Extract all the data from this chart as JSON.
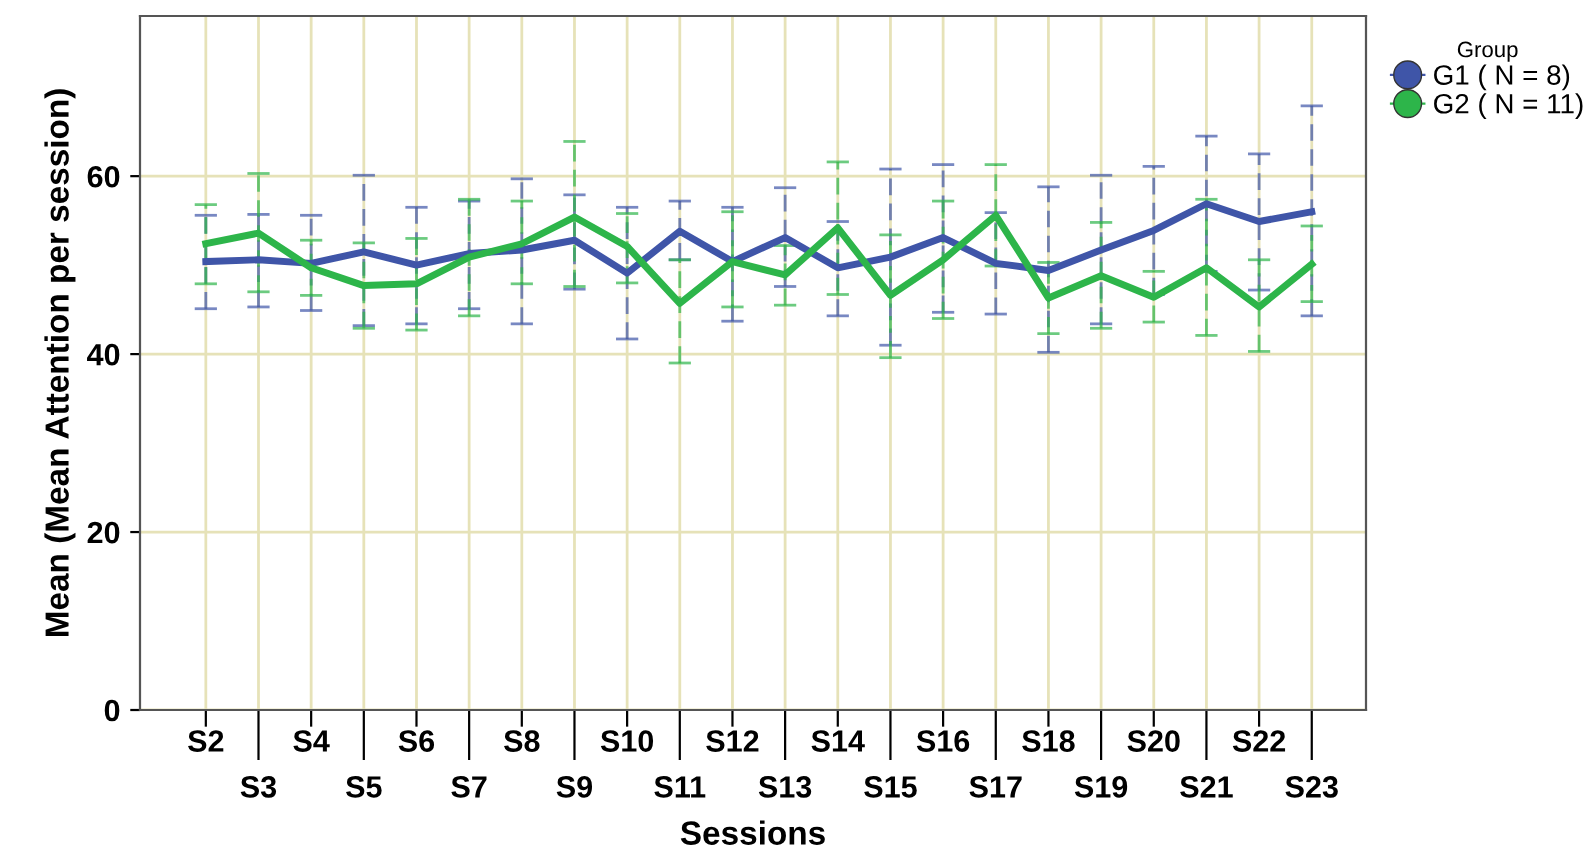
{
  "chart_data": {
    "type": "line",
    "xlabel": "Sessions",
    "ylabel": "Mean (Mean Attention per session)",
    "legend_title": "Group",
    "legend": "right",
    "grid": true,
    "marker": "none",
    "line_style": "solid",
    "categories": [
      "S2",
      "S3",
      "S4",
      "S5",
      "S6",
      "S7",
      "S8",
      "S9",
      "S10",
      "S11",
      "S12",
      "S13",
      "S14",
      "S15",
      "S16",
      "S17",
      "S18",
      "S19",
      "S20",
      "S21",
      "S22",
      "S23"
    ],
    "ylim": [
      0,
      78
    ],
    "yticks": [
      0,
      20,
      40,
      60
    ],
    "series": [
      {
        "name": "G1 ( N = 8)",
        "color": "#3f55a8",
        "values": [
          50.4,
          50.6,
          50.2,
          51.5,
          50.0,
          51.3,
          51.7,
          52.8,
          49.1,
          53.8,
          50.4,
          53.1,
          49.7,
          50.9,
          53.1,
          50.2,
          49.4,
          51.7,
          53.9,
          56.9,
          54.9,
          56.0
        ],
        "errors": [
          [
            45.1,
            55.6
          ],
          [
            45.3,
            55.7
          ],
          [
            44.9,
            55.6
          ],
          [
            43.2,
            60.1
          ],
          [
            43.4,
            56.5
          ],
          [
            45.1,
            57.2
          ],
          [
            43.4,
            59.7
          ],
          [
            47.3,
            57.9
          ],
          [
            41.7,
            56.5
          ],
          [
            50.6,
            57.2
          ],
          [
            43.7,
            56.5
          ],
          [
            47.6,
            58.7
          ],
          [
            44.3,
            54.9
          ],
          [
            41.0,
            60.8
          ],
          [
            44.7,
            61.3
          ],
          [
            44.5,
            55.9
          ],
          [
            40.2,
            58.8
          ],
          [
            43.4,
            60.1
          ],
          [
            46.7,
            61.1
          ],
          [
            49.3,
            64.5
          ],
          [
            47.2,
            62.5
          ],
          [
            44.3,
            67.9
          ]
        ]
      },
      {
        "name": "G2 ( N = 11)",
        "color": "#2db54a",
        "values": [
          52.4,
          53.6,
          49.7,
          47.7,
          47.9,
          50.9,
          52.4,
          55.4,
          52.1,
          45.7,
          50.4,
          48.9,
          54.2,
          46.6,
          50.6,
          55.6,
          46.3,
          48.8,
          46.4,
          49.7,
          45.3,
          50.1
        ],
        "errors": [
          [
            47.9,
            56.8
          ],
          [
            47.0,
            60.3
          ],
          [
            46.6,
            52.8
          ],
          [
            42.9,
            52.5
          ],
          [
            42.7,
            53.0
          ],
          [
            44.3,
            57.4
          ],
          [
            47.9,
            57.2
          ],
          [
            47.6,
            63.9
          ],
          [
            48.0,
            55.8
          ],
          [
            39.0,
            50.6
          ],
          [
            45.3,
            56.0
          ],
          [
            45.5,
            52.2
          ],
          [
            46.7,
            61.6
          ],
          [
            39.6,
            53.4
          ],
          [
            44.0,
            57.2
          ],
          [
            49.9,
            61.3
          ],
          [
            42.3,
            50.3
          ],
          [
            42.9,
            54.8
          ],
          [
            43.6,
            49.3
          ],
          [
            42.1,
            57.4
          ],
          [
            40.3,
            50.6
          ],
          [
            45.9,
            54.4
          ]
        ]
      }
    ]
  }
}
